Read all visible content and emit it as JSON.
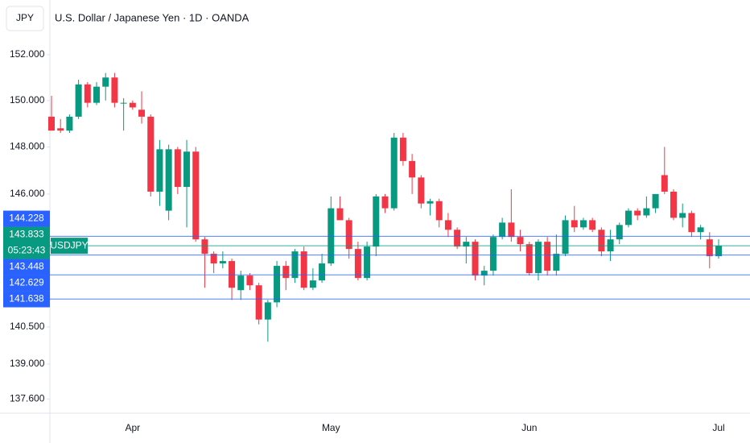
{
  "chart_data": {
    "type": "candlestick",
    "title": "U.S. Dollar / Japanese Yen · 1D · OANDA",
    "currency": "JPY",
    "log_scale": true,
    "grid": false,
    "ylim": [
      137.04,
      154.42
    ],
    "yticks": [
      {
        "value": 152,
        "label": "152.000"
      },
      {
        "value": 150,
        "label": "150.000"
      },
      {
        "value": 148,
        "label": "148.000"
      },
      {
        "value": 146,
        "label": "146.000"
      },
      {
        "value": 140.5,
        "label": "140.500"
      },
      {
        "value": 139,
        "label": "139.000"
      },
      {
        "value": 137.6,
        "label": "137.600"
      }
    ],
    "categories": [
      null,
      null,
      null,
      null,
      null,
      null,
      null,
      null,
      null,
      "Apr",
      null,
      null,
      null,
      null,
      null,
      null,
      null,
      null,
      null,
      null,
      null,
      null,
      null,
      null,
      null,
      null,
      null,
      null,
      null,
      null,
      null,
      "May",
      null,
      null,
      null,
      null,
      null,
      null,
      null,
      null,
      null,
      null,
      null,
      null,
      null,
      null,
      null,
      null,
      null,
      null,
      null,
      null,
      null,
      "Jun",
      null,
      null,
      null,
      null,
      null,
      null,
      null,
      null,
      null,
      null,
      null,
      null,
      null,
      null,
      null,
      null,
      null,
      null,
      null,
      null,
      "Jul"
    ],
    "series": [
      {
        "name": "USDJPY",
        "up_color": "#089981",
        "down_color": "#f23645",
        "open": [
          149.3,
          148.8,
          148.7,
          149.3,
          150.7,
          149.9,
          150.6,
          151.0,
          149.9,
          149.9,
          149.6,
          149.3,
          146.1,
          145.3,
          147.9,
          146.3,
          147.8,
          144.1,
          143.5,
          143.1,
          143.2,
          142.0,
          142.6,
          142.2,
          140.8,
          141.5,
          143.0,
          142.5,
          143.6,
          142.1,
          142.4,
          143.1,
          145.4,
          144.9,
          143.7,
          142.5,
          143.8,
          145.9,
          145.4,
          148.4,
          147.4,
          146.7,
          145.6,
          145.7,
          144.9,
          144.5,
          143.8,
          144.0,
          142.6,
          142.8,
          144.2,
          144.8,
          144.2,
          143.9,
          142.7,
          144.0,
          142.8,
          143.5,
          144.9,
          144.6,
          144.9,
          144.5,
          143.6,
          144.1,
          144.7,
          145.3,
          145.1,
          145.4,
          146.8,
          146.1,
          145.0,
          145.2,
          144.4,
          144.1,
          143.4
        ],
        "high": [
          150.2,
          149.2,
          149.4,
          150.9,
          150.8,
          150.8,
          151.2,
          151.2,
          150.1,
          150.0,
          150.4,
          149.4,
          148.3,
          148.1,
          148.0,
          148.3,
          148.0,
          144.2,
          143.6,
          143.6,
          143.3,
          142.8,
          142.7,
          142.3,
          141.6,
          143.2,
          143.2,
          143.7,
          143.8,
          142.9,
          143.5,
          145.9,
          145.9,
          145.0,
          144.0,
          144.0,
          146.0,
          146.0,
          148.6,
          148.6,
          147.7,
          146.8,
          145.8,
          145.8,
          145.2,
          144.6,
          144.2,
          144.1,
          143.0,
          144.3,
          145.0,
          146.2,
          144.5,
          144.0,
          144.1,
          144.2,
          144.3,
          145.1,
          145.5,
          145.0,
          145.0,
          144.6,
          144.5,
          144.8,
          145.4,
          145.4,
          145.9,
          146.0,
          148.0,
          146.2,
          145.6,
          145.3,
          144.7,
          144.4,
          144.1
        ],
        "low": [
          148.7,
          148.6,
          148.6,
          149.2,
          149.7,
          149.8,
          150.0,
          149.7,
          148.7,
          149.6,
          149.0,
          145.9,
          145.5,
          144.9,
          146.0,
          144.6,
          144.0,
          142.1,
          142.7,
          142.9,
          141.6,
          141.6,
          142.0,
          140.6,
          139.9,
          141.3,
          142.0,
          142.3,
          142.0,
          142.0,
          142.3,
          143.0,
          144.9,
          143.3,
          142.4,
          142.4,
          143.4,
          145.2,
          145.3,
          147.2,
          146.0,
          145.4,
          145.1,
          144.6,
          144.2,
          143.7,
          143.1,
          142.4,
          142.2,
          142.6,
          144.1,
          144.0,
          143.6,
          142.6,
          142.4,
          142.6,
          142.6,
          143.4,
          144.4,
          144.5,
          144.4,
          143.4,
          143.2,
          143.9,
          144.6,
          144.9,
          145.0,
          145.2,
          146.0,
          144.9,
          144.6,
          144.2,
          144.1,
          142.9,
          143.3
        ],
        "close": [
          148.7,
          148.7,
          149.3,
          150.7,
          149.9,
          150.6,
          151.0,
          149.9,
          149.9,
          149.7,
          149.3,
          146.1,
          147.9,
          147.9,
          146.3,
          147.8,
          144.1,
          143.5,
          143.1,
          143.2,
          142.1,
          142.6,
          142.2,
          140.8,
          141.5,
          143.0,
          142.5,
          143.6,
          142.1,
          142.4,
          143.1,
          145.4,
          144.9,
          143.7,
          142.5,
          143.8,
          145.9,
          145.4,
          148.4,
          147.4,
          146.7,
          145.6,
          145.7,
          144.9,
          144.5,
          143.8,
          144.0,
          142.6,
          142.8,
          144.2,
          144.8,
          144.2,
          143.9,
          142.7,
          144.0,
          142.8,
          143.5,
          144.9,
          144.6,
          144.9,
          144.5,
          143.6,
          144.1,
          144.7,
          145.3,
          145.1,
          145.4,
          146.0,
          146.1,
          145.0,
          145.2,
          144.4,
          144.6,
          143.4,
          143.833
        ]
      }
    ],
    "price_lines": [
      {
        "value": 144.228,
        "label": "144.228",
        "color": "#2962ff"
      },
      {
        "value": 143.833,
        "label": "143.833",
        "color": "#089981"
      },
      {
        "value": 143.448,
        "label": "143.448",
        "color": "#2962ff"
      },
      {
        "value": 142.629,
        "label": "142.629",
        "color": "#2962ff"
      },
      {
        "value": 141.638,
        "label": "141.638",
        "color": "#2962ff"
      }
    ],
    "countdown": "05:23:43"
  }
}
